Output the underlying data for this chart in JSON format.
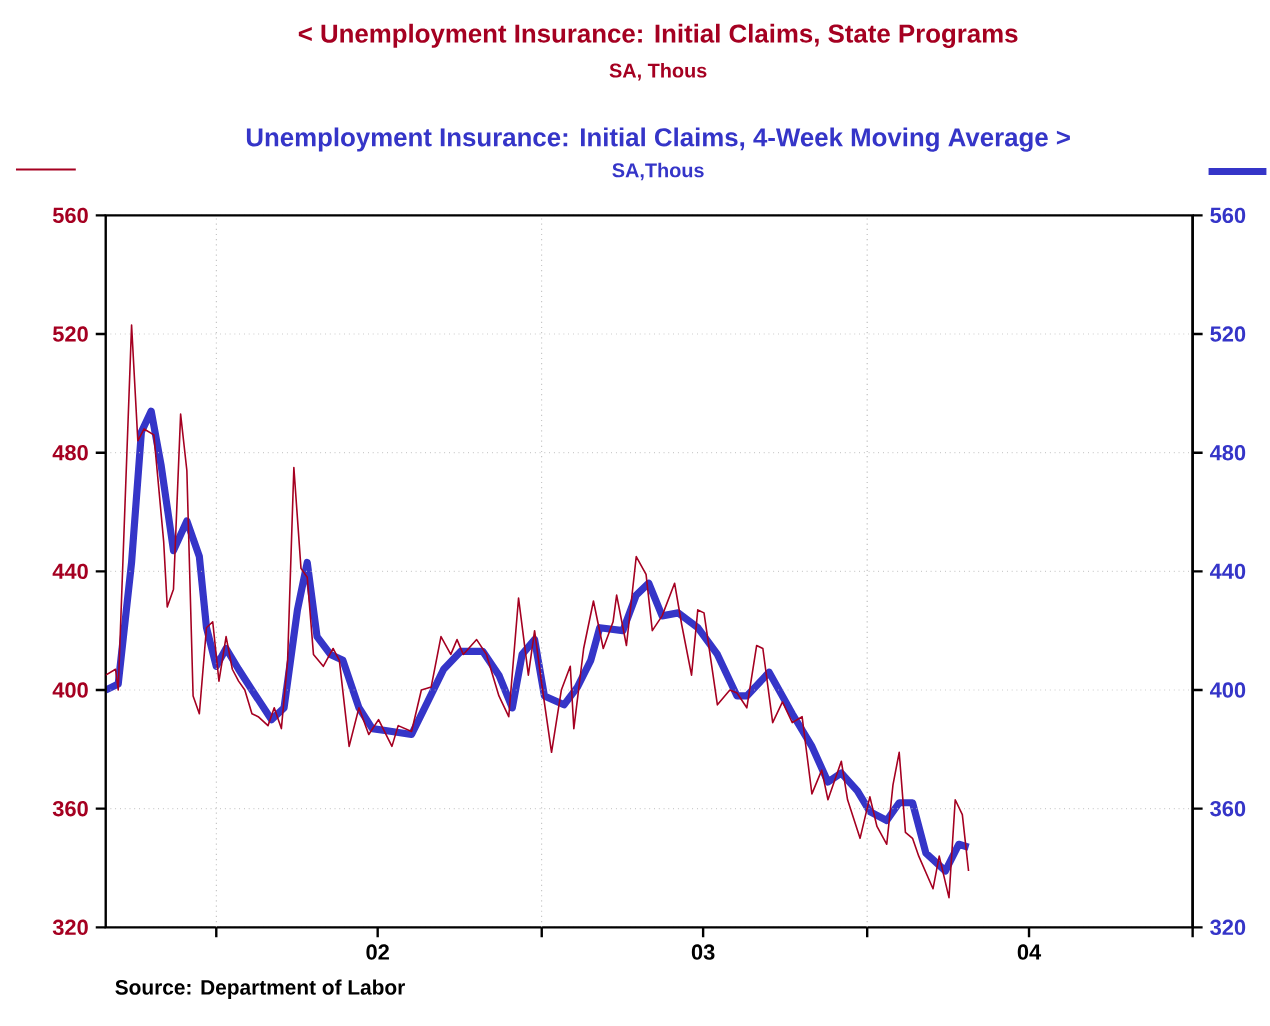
{
  "chart_data": {
    "type": "line",
    "annotations": [
      "Source:  Department of Labor",
      "SA, Thous",
      "SA,Thous"
    ],
    "xlim": [
      "2001-08-30",
      "2005-01-01"
    ],
    "xticks": [
      {
        "value": "2002-01-01",
        "label": null
      },
      {
        "value": "2002-07-01",
        "label": "02"
      },
      {
        "value": "2003-01-01",
        "label": null
      },
      {
        "value": "2003-07-01",
        "label": "03"
      },
      {
        "value": "2004-01-01",
        "label": null
      },
      {
        "value": "2004-07-01",
        "label": "04"
      },
      {
        "value": "2005-01-01",
        "label": null
      }
    ],
    "ylim": [
      320,
      560
    ],
    "yticks": [
      320,
      360,
      400,
      440,
      480,
      520,
      560
    ],
    "y2lim": [
      320,
      560
    ],
    "y2ticks": [
      320,
      360,
      400,
      440,
      480,
      520,
      560
    ],
    "grid": true,
    "legend": "top",
    "series": [
      {
        "name": "<  Unemployment Insurance: Initial Claims, State Programs",
        "color": "#a50021",
        "x": [
          "2001-08-30",
          "2001-09-10",
          "2001-09-13",
          "2001-09-28",
          "2001-10-05",
          "2001-10-12",
          "2001-10-23",
          "2001-11-03",
          "2001-11-07",
          "2001-11-14",
          "2001-11-22",
          "2001-11-29",
          "2001-12-06",
          "2001-12-13",
          "2001-12-21",
          "2001-12-28",
          "2002-01-04",
          "2002-01-12",
          "2002-01-19",
          "2002-01-26",
          "2002-02-02",
          "2002-02-10",
          "2002-02-17",
          "2002-02-28",
          "2002-03-07",
          "2002-03-15",
          "2002-03-22",
          "2002-03-29",
          "2002-04-06",
          "2002-04-13",
          "2002-04-20",
          "2002-05-01",
          "2002-05-12",
          "2002-05-19",
          "2002-05-30",
          "2002-06-10",
          "2002-06-21",
          "2002-07-02",
          "2002-07-17",
          "2002-07-24",
          "2002-08-08",
          "2002-08-19",
          "2002-08-30",
          "2002-09-10",
          "2002-09-21",
          "2002-09-28",
          "2002-10-05",
          "2002-10-20",
          "2002-10-31",
          "2002-11-14",
          "2002-11-25",
          "2002-12-06",
          "2002-12-17",
          "2002-12-24",
          "2003-01-01",
          "2003-01-12",
          "2003-01-23",
          "2003-02-02",
          "2003-02-06",
          "2003-02-17",
          "2003-02-28",
          "2003-03-11",
          "2003-03-22",
          "2003-03-26",
          "2003-04-06",
          "2003-04-17",
          "2003-04-28",
          "2003-05-05",
          "2003-05-16",
          "2003-05-30",
          "2003-06-07",
          "2003-06-18",
          "2003-06-25",
          "2003-07-02",
          "2003-07-17",
          "2003-07-31",
          "2003-08-08",
          "2003-08-19",
          "2003-08-30",
          "2003-09-06",
          "2003-09-17",
          "2003-09-28",
          "2003-10-09",
          "2003-10-20",
          "2003-10-31",
          "2003-11-11",
          "2003-11-18",
          "2003-12-03",
          "2003-12-10",
          "2003-12-24",
          "2004-01-04",
          "2004-01-12",
          "2004-01-23",
          "2004-01-30",
          "2004-02-06",
          "2004-02-13",
          "2004-02-21",
          "2004-02-28",
          "2004-03-15",
          "2004-03-22",
          "2004-04-02",
          "2004-04-09",
          "2004-04-17",
          "2004-04-24"
        ],
        "values": [
          405,
          407,
          400,
          523,
          484,
          488,
          486,
          450,
          428,
          434,
          493,
          474,
          398,
          392,
          421,
          423,
          403,
          418,
          407,
          403,
          400,
          392,
          391,
          388,
          394,
          387,
          410,
          475,
          441,
          438,
          412,
          408,
          414,
          410,
          381,
          394,
          385,
          390,
          381,
          388,
          386,
          400,
          401,
          418,
          412,
          417,
          412,
          417,
          412,
          398,
          391,
          431,
          405,
          420,
          402,
          379,
          400,
          408,
          387,
          414,
          430,
          414,
          423,
          432,
          415,
          445,
          439,
          420,
          425,
          436,
          422,
          405,
          427,
          426,
          395,
          400,
          399,
          394,
          415,
          414,
          389,
          396,
          389,
          391,
          365,
          373,
          363,
          376,
          363,
          350,
          364,
          354,
          348,
          368,
          379,
          352,
          350,
          344,
          333,
          344,
          330,
          363,
          358,
          339
        ]
      },
      {
        "name": "Unemployment Insurance: Initial Claims, 4-Week Moving Average  >",
        "color": "#3535c8",
        "axis": "y2",
        "x": [
          "2001-08-30",
          "2001-09-13",
          "2001-09-28",
          "2001-10-09",
          "2001-10-20",
          "2001-10-31",
          "2001-11-14",
          "2001-11-29",
          "2001-12-13",
          "2001-12-21",
          "2002-01-01",
          "2002-01-12",
          "2002-01-26",
          "2002-02-10",
          "2002-03-04",
          "2002-03-18",
          "2002-04-02",
          "2002-04-13",
          "2002-04-24",
          "2002-05-09",
          "2002-05-23",
          "2002-06-10",
          "2002-06-25",
          "2002-07-17",
          "2002-08-08",
          "2002-08-26",
          "2002-09-13",
          "2002-10-02",
          "2002-10-27",
          "2002-11-14",
          "2002-11-29",
          "2002-12-10",
          "2002-12-24",
          "2003-01-04",
          "2003-01-26",
          "2003-02-10",
          "2003-02-25",
          "2003-03-07",
          "2003-04-02",
          "2003-04-17",
          "2003-05-01",
          "2003-05-16",
          "2003-06-03",
          "2003-06-25",
          "2003-07-17",
          "2003-08-08",
          "2003-08-19",
          "2003-09-13",
          "2003-10-09",
          "2003-10-31",
          "2003-11-18",
          "2003-12-03",
          "2003-12-21",
          "2004-01-04",
          "2004-01-23",
          "2004-02-06",
          "2004-02-21",
          "2004-03-07",
          "2004-03-29",
          "2004-04-13",
          "2004-04-24"
        ],
        "values": [
          400,
          402,
          443,
          487,
          494,
          476,
          447,
          457,
          445,
          421,
          408,
          414,
          407,
          400,
          390,
          394,
          427,
          443,
          418,
          412,
          410,
          394,
          387,
          386,
          385,
          396,
          407,
          413,
          413,
          405,
          394,
          412,
          417,
          398,
          395,
          401,
          410,
          421,
          420,
          432,
          436,
          425,
          426,
          421,
          412,
          398,
          398,
          406,
          392,
          381,
          369,
          372,
          366,
          359,
          356,
          362,
          362,
          345,
          339,
          348,
          347
        ]
      }
    ]
  }
}
